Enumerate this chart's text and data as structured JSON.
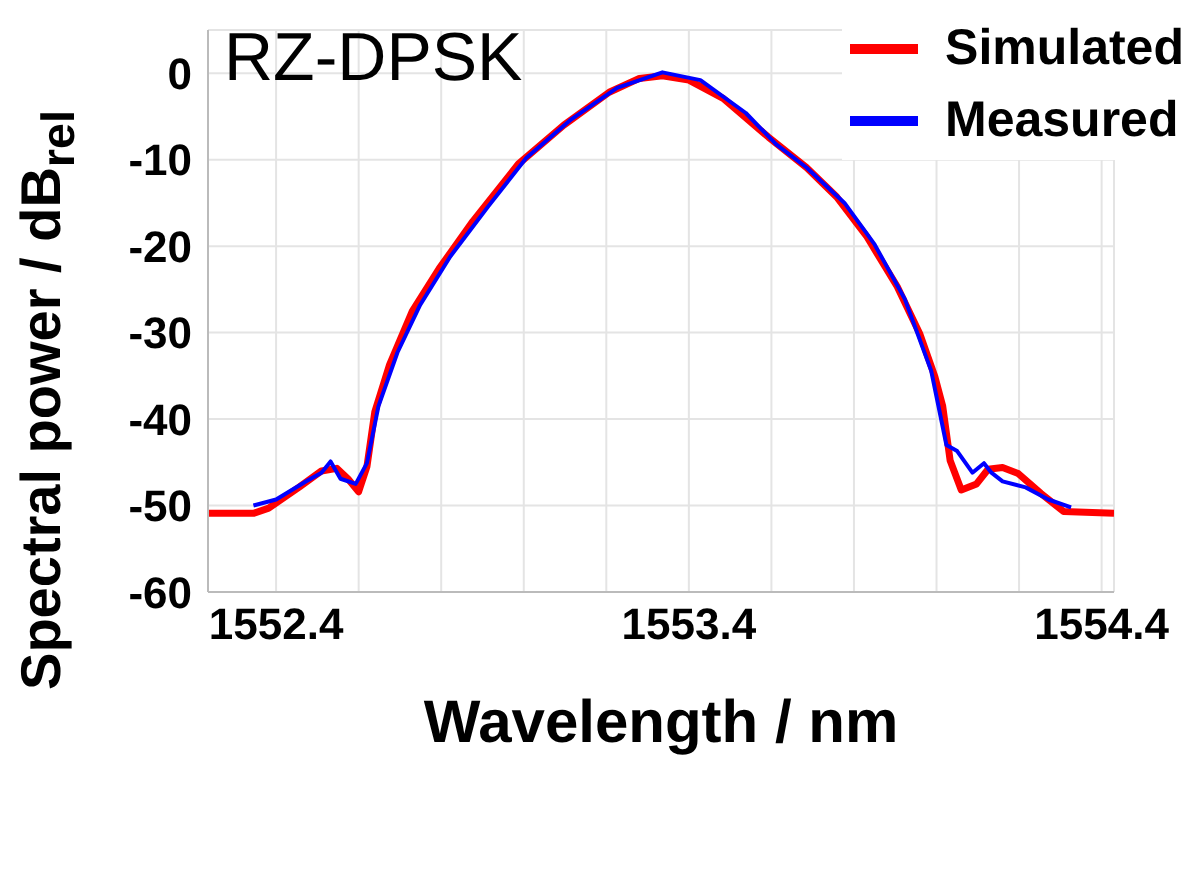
{
  "chart_data": {
    "type": "line",
    "title": "RZ-DPSK",
    "xlabel": "Wavelength / nm",
    "ylabel": "Spectral power / dB$_{rel}$",
    "xlim": [
      1552.235,
      1554.43
    ],
    "ylim": [
      -60,
      5
    ],
    "xticks": [
      1552.4,
      {
        "value": 1552.6,
        "label": null
      },
      {
        "value": 1552.8,
        "label": null
      },
      {
        "value": 1553.0,
        "label": null
      },
      {
        "value": 1553.2,
        "label": null
      },
      1553.4,
      {
        "value": 1553.6,
        "label": null
      },
      {
        "value": 1553.8,
        "label": null
      },
      {
        "value": 1554.0,
        "label": null
      },
      {
        "value": 1554.2,
        "label": null
      },
      1554.4
    ],
    "yticks": [
      0,
      -10,
      -20,
      -30,
      -40,
      -50,
      -60
    ],
    "grid": true,
    "legend": "top right",
    "marker": "none",
    "line_style": "solid",
    "series": [
      {
        "name": "Simulated",
        "color": "#ff0000",
        "x": [
          1552.235,
          1552.345,
          1552.382,
          1552.455,
          1552.51,
          1552.547,
          1552.574,
          1552.6,
          1552.62,
          1552.639,
          1552.675,
          1552.73,
          1552.795,
          1552.877,
          1552.987,
          1553.097,
          1553.207,
          1553.28,
          1553.336,
          1553.4,
          1553.483,
          1553.593,
          1553.685,
          1553.758,
          1553.83,
          1553.905,
          1553.96,
          1553.996,
          1554.015,
          1554.033,
          1554.06,
          1554.097,
          1554.125,
          1554.16,
          1554.198,
          1554.253,
          1554.308,
          1554.43
        ],
        "values": [
          -50.9,
          -50.9,
          -50.3,
          -47.9,
          -46.0,
          -45.7,
          -46.9,
          -48.4,
          -45.5,
          -39.2,
          -33.7,
          -27.5,
          -22.6,
          -17.1,
          -10.5,
          -6.0,
          -2.2,
          -0.6,
          -0.3,
          -0.8,
          -2.9,
          -7.4,
          -10.9,
          -14.3,
          -18.8,
          -24.7,
          -30.2,
          -35.1,
          -38.5,
          -44.8,
          -48.2,
          -47.5,
          -45.8,
          -45.6,
          -46.3,
          -48.6,
          -50.7,
          -50.9
        ]
      },
      {
        "name": "Measured",
        "color": "#0000ff",
        "x": [
          1552.345,
          1552.4,
          1552.473,
          1552.51,
          1552.532,
          1552.556,
          1552.593,
          1552.62,
          1552.648,
          1552.694,
          1552.749,
          1552.822,
          1552.914,
          1553.006,
          1553.116,
          1553.226,
          1553.336,
          1553.428,
          1553.538,
          1553.611,
          1553.685,
          1553.777,
          1553.85,
          1553.923,
          1553.987,
          1554.024,
          1554.05,
          1554.087,
          1554.115,
          1554.133,
          1554.16,
          1554.216,
          1554.271,
          1554.326
        ],
        "values": [
          -50.0,
          -49.3,
          -47.2,
          -46.2,
          -44.9,
          -46.9,
          -47.5,
          -45.1,
          -38.5,
          -32.3,
          -26.8,
          -21.2,
          -15.4,
          -9.8,
          -5.3,
          -1.7,
          0.1,
          -0.8,
          -4.6,
          -8.2,
          -10.9,
          -15.0,
          -19.8,
          -26.1,
          -34.4,
          -43.0,
          -43.7,
          -46.2,
          -45.1,
          -46.2,
          -47.2,
          -47.9,
          -49.3,
          -50.2
        ]
      }
    ]
  }
}
